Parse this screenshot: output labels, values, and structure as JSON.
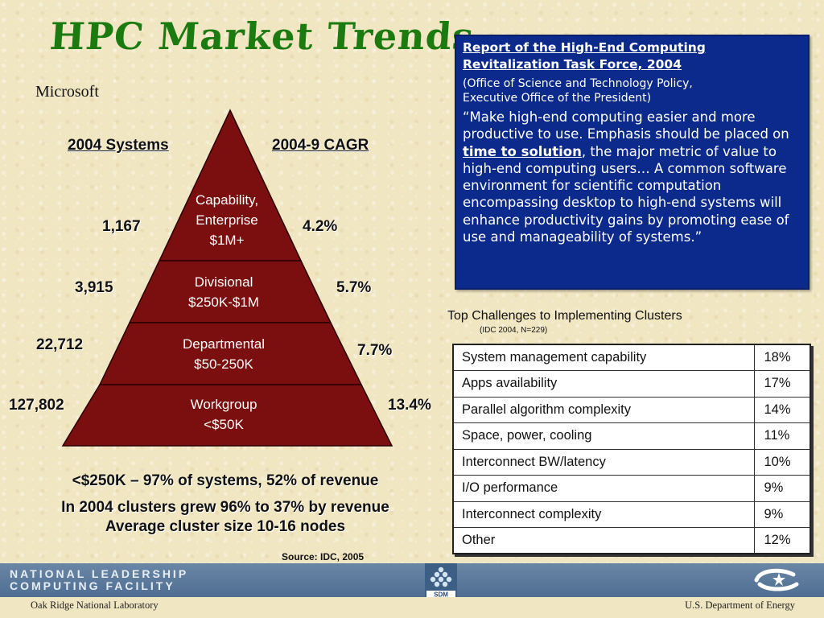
{
  "title": "HPC Market Trends",
  "company": "Microsoft",
  "pyramid": {
    "left_header": "2004 Systems",
    "right_header": "2004-9 CAGR",
    "tiers": [
      {
        "line1": "Capability,",
        "line2": "Enterprise",
        "line3": "$1M+",
        "systems": "1,167",
        "cagr": "4.2%"
      },
      {
        "line1": "Divisional",
        "line2": "$250K-$1M",
        "systems": "3,915",
        "cagr": "5.7%"
      },
      {
        "line1": "Departmental",
        "line2": "$50-250K",
        "systems": "22,712",
        "cagr": "7.7%"
      },
      {
        "line1": "Workgroup",
        "line2": "<$50K",
        "systems": "127,802",
        "cagr": "13.4%"
      }
    ],
    "colors": {
      "fill": "#7b0e0e",
      "stroke": "#2a0000"
    }
  },
  "summary": {
    "line1": "<$250K – 97% of systems, 52% of revenue",
    "line2": "In 2004 clusters grew 96% to 37% by revenue",
    "line3": "Average cluster size 10-16 nodes"
  },
  "source": "Source: IDC, 2005",
  "report": {
    "title_line1": "Report of the High-End Computing",
    "title_line2": "Revitalization Task Force, 2004",
    "subtitle_line1": "(Office of Science and Technology Policy,",
    "subtitle_line2": "Executive Office of the President)",
    "quote_before": "“Make high-end computing easier and more productive to use.  Emphasis should be placed on ",
    "quote_emphasis": "time to solution",
    "quote_after": ", the major metric of value to high-end computing users… A common software environment for scientific computation encompassing desktop to high-end systems will enhance productivity gains by promoting ease of use and manageability of systems.”",
    "bg_color": "#0b2a8c"
  },
  "challenges": {
    "title": "Top Challenges to Implementing Clusters",
    "note": "(IDC 2004, N=229)",
    "rows": [
      {
        "label": "System management capability",
        "pct": "18%"
      },
      {
        "label": "Apps availability",
        "pct": "17%"
      },
      {
        "label": "Parallel algorithm complexity",
        "pct": "14%"
      },
      {
        "label": "Space, power, cooling",
        "pct": "11%"
      },
      {
        "label": "Interconnect BW/latency",
        "pct": "10%"
      },
      {
        "label": "I/O performance",
        "pct": "9%"
      },
      {
        "label": "Interconnect complexity",
        "pct": "9%"
      },
      {
        "label": "Other",
        "pct": "12%"
      }
    ]
  },
  "footer": {
    "org_line1": "NATIONAL LEADERSHIP",
    "org_line2": "COMPUTING FACILITY",
    "left_caption": "Oak Ridge National Laboratory",
    "right_caption": "U.S. Department of Energy",
    "sdm_label": "SDM",
    "sdm_icon": "sdm-logo-icon",
    "doe_icon": "doe-logo-icon"
  }
}
